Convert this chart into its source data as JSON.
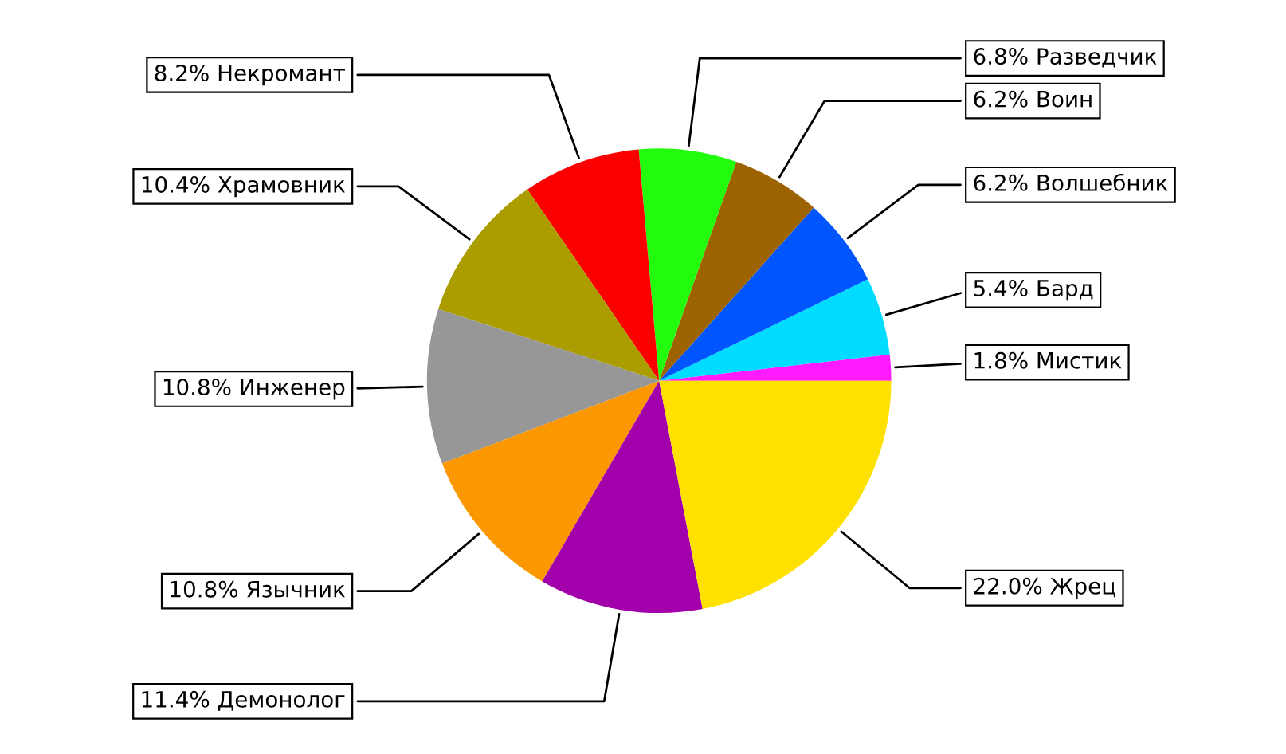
{
  "chart_data": {
    "type": "pie",
    "categories": [
      "Мистик",
      "Бард",
      "Волшебник",
      "Воин",
      "Разведчик",
      "Некромант",
      "Храмовник",
      "Инженер",
      "Язычник",
      "Демонолог",
      "Жрец"
    ],
    "values": [
      1.8,
      5.4,
      6.2,
      6.2,
      6.8,
      8.2,
      10.4,
      10.8,
      10.8,
      11.4,
      22.0
    ],
    "value_labels": [
      "1.8%",
      "5.4%",
      "6.2%",
      "6.2%",
      "6.8%",
      "8.2%",
      "10.4%",
      "10.8%",
      "10.8%",
      "11.4%",
      "22.0%"
    ],
    "colors": [
      "#ff1aff",
      "#00dcff",
      "#0055ff",
      "#9c6300",
      "#22fb0d",
      "#fb0000",
      "#ab9c00",
      "#979797",
      "#fb9700",
      "#a200ab",
      "#ffe100"
    ]
  }
}
